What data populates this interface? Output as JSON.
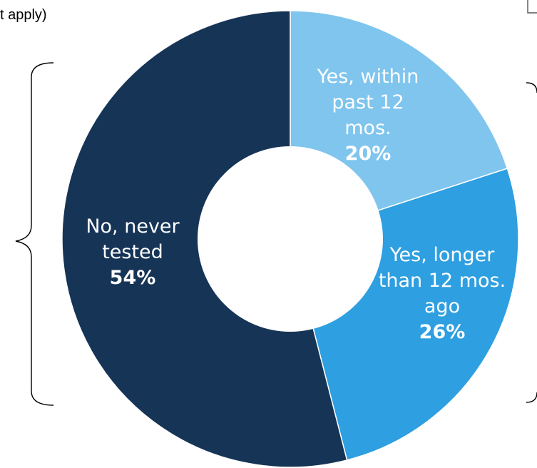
{
  "header": {
    "caption": "t apply)"
  },
  "chart_data": {
    "type": "pie",
    "donut": true,
    "categories": [
      "Yes, within past 12 mos.",
      "Yes, longer than 12 mos. ago",
      "No, never tested"
    ],
    "values": [
      20,
      26,
      54
    ],
    "colors": [
      "#7fc5ee",
      "#2e9fe0",
      "#163456"
    ],
    "data_labels": [
      "20%",
      "26%",
      "54%"
    ],
    "legend": "none"
  },
  "labels": {
    "within": {
      "lines": [
        "Yes, within",
        "past 12 mos."
      ],
      "pct": "20%"
    },
    "longer": {
      "lines": [
        "Yes, longer",
        "than 12 mos.",
        "ago"
      ],
      "pct": "26%"
    },
    "never": {
      "lines": [
        "No, never",
        "tested"
      ],
      "pct": "54%"
    }
  },
  "colors": {
    "background": "#ffffff",
    "bracket": "#000000",
    "label_text": "#ffffff"
  }
}
